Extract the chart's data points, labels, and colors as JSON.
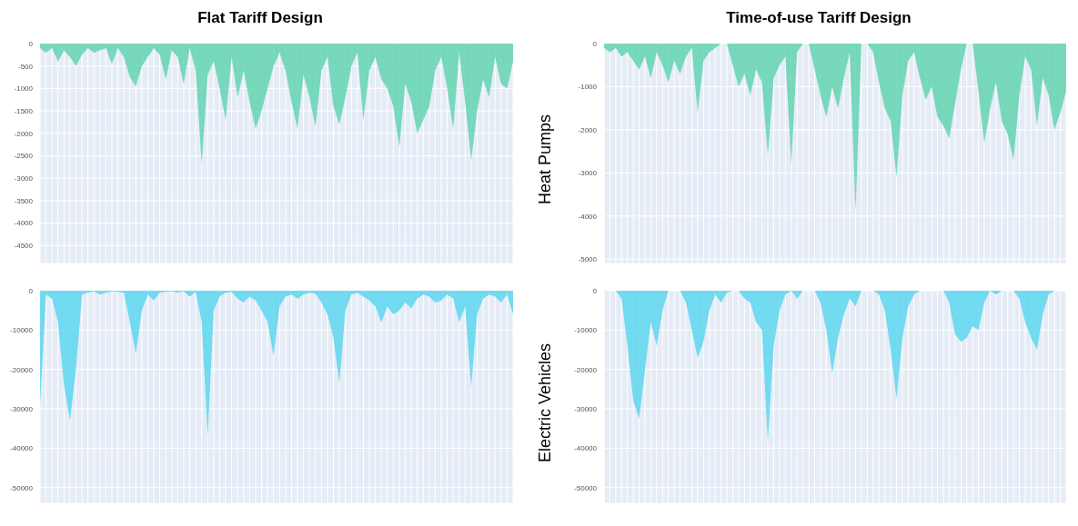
{
  "chart_data": [
    {
      "type": "area",
      "title": "Flat Tariff Design",
      "categories": [
        null,
        null,
        null,
        null,
        null,
        null,
        null,
        null,
        null,
        null,
        null,
        null,
        null,
        null,
        null,
        null,
        null,
        null,
        null,
        null,
        null,
        null,
        null,
        null,
        null,
        null,
        null,
        null,
        null,
        null,
        null,
        null,
        null,
        null,
        null,
        null,
        null,
        null,
        null,
        null,
        null,
        null,
        null,
        null,
        null,
        null,
        null,
        null,
        null,
        null,
        null,
        null,
        null,
        null,
        null,
        null,
        null,
        null,
        null,
        null,
        null,
        null,
        null,
        null,
        null,
        null,
        null,
        null,
        null,
        null,
        null,
        null,
        null,
        null,
        null,
        null,
        null,
        null,
        null,
        null
      ],
      "series": [
        {
          "color": "#63d3b0",
          "values": [
            -100,
            -200,
            -100,
            -400,
            -150,
            -300,
            -500,
            -250,
            -100,
            -200,
            -150,
            -100,
            -450,
            -100,
            -300,
            -750,
            -950,
            -500,
            -300,
            -100,
            -250,
            -800,
            -150,
            -300,
            -900,
            -100,
            -600,
            -2700,
            -700,
            -400,
            -1000,
            -1700,
            -300,
            -1200,
            -600,
            -1300,
            -1900,
            -1500,
            -1000,
            -500,
            -200,
            -600,
            -1300,
            -1900,
            -700,
            -1200,
            -1850,
            -600,
            -300,
            -1400,
            -1800,
            -1200,
            -500,
            -200,
            -1700,
            -600,
            -300,
            -800,
            -1000,
            -1400,
            -2300,
            -900,
            -1300,
            -2000,
            -1700,
            -1400,
            -600,
            -300,
            -1000,
            -1900,
            -200,
            -1300,
            -2600,
            -1500,
            -800,
            -1200,
            -300,
            -900,
            -1000,
            -400
          ]
        }
      ],
      "ylim": [
        -4900,
        0
      ],
      "yticks": [
        0,
        -500,
        -1000,
        -1500,
        -2000,
        -2500,
        -3000,
        -3500,
        -4000,
        -4500
      ],
      "grid": true
    },
    {
      "type": "area",
      "title": "Time-of-use Tariff Design",
      "ylabel": "Heat Pumps",
      "categories": [
        null,
        null,
        null,
        null,
        null,
        null,
        null,
        null,
        null,
        null,
        null,
        null,
        null,
        null,
        null,
        null,
        null,
        null,
        null,
        null,
        null,
        null,
        null,
        null,
        null,
        null,
        null,
        null,
        null,
        null,
        null,
        null,
        null,
        null,
        null,
        null,
        null,
        null,
        null,
        null,
        null,
        null,
        null,
        null,
        null,
        null,
        null,
        null,
        null,
        null,
        null,
        null,
        null,
        null,
        null,
        null,
        null,
        null,
        null,
        null,
        null,
        null,
        null,
        null,
        null,
        null,
        null,
        null,
        null,
        null,
        null,
        null,
        null,
        null,
        null,
        null,
        null,
        null,
        null,
        null
      ],
      "series": [
        {
          "color": "#63d3b0",
          "values": [
            -100,
            -200,
            -100,
            -300,
            -200,
            -400,
            -600,
            -300,
            -800,
            -200,
            -500,
            -900,
            -400,
            -700,
            -300,
            -100,
            -1600,
            -400,
            -200,
            -100,
            0,
            0,
            -500,
            -1000,
            -700,
            -1200,
            -600,
            -900,
            -2600,
            -800,
            -500,
            -300,
            -2800,
            -200,
            0,
            0,
            -600,
            -1200,
            -1700,
            -1000,
            -1500,
            -800,
            -200,
            -3900,
            0,
            0,
            -200,
            -900,
            -1500,
            -1800,
            -3100,
            -1200,
            -400,
            -200,
            -800,
            -1300,
            -1000,
            -1700,
            -1900,
            -2200,
            -1400,
            -600,
            0,
            0,
            -1100,
            -2300,
            -1500,
            -900,
            -1800,
            -2100,
            -2700,
            -1200,
            -300,
            -600,
            -1900,
            -800,
            -1200,
            -2000,
            -1600,
            -1100
          ]
        }
      ],
      "ylim": [
        -5100,
        0
      ],
      "yticks": [
        0,
        -1000,
        -2000,
        -3000,
        -4000,
        -5000
      ],
      "grid": true
    },
    {
      "type": "area",
      "categories": [
        null,
        null,
        null,
        null,
        null,
        null,
        null,
        null,
        null,
        null,
        null,
        null,
        null,
        null,
        null,
        null,
        null,
        null,
        null,
        null,
        null,
        null,
        null,
        null,
        null,
        null,
        null,
        null,
        null,
        null,
        null,
        null,
        null,
        null,
        null,
        null,
        null,
        null,
        null,
        null,
        null,
        null,
        null,
        null,
        null,
        null,
        null,
        null,
        null,
        null,
        null,
        null,
        null,
        null,
        null,
        null,
        null,
        null,
        null,
        null,
        null,
        null,
        null,
        null,
        null,
        null,
        null,
        null,
        null,
        null,
        null,
        null,
        null,
        null,
        null,
        null,
        null,
        null,
        null,
        null
      ],
      "series": [
        {
          "color": "#5dd6ee",
          "values": [
            -29000,
            -1000,
            -2000,
            -8000,
            -24000,
            -33000,
            -20000,
            -1000,
            -500,
            -200,
            -1000,
            -500,
            -200,
            -300,
            -500,
            -8000,
            -16000,
            -5000,
            -1000,
            -2500,
            -500,
            -300,
            -200,
            -500,
            -200,
            -1500,
            -300,
            -8000,
            -37000,
            -5000,
            -1500,
            -500,
            -300,
            -2000,
            -3000,
            -1500,
            -2500,
            -5000,
            -8000,
            -16500,
            -4000,
            -1500,
            -1000,
            -2000,
            -1000,
            -500,
            -800,
            -3000,
            -6000,
            -12000,
            -23500,
            -5000,
            -1000,
            -500,
            -1500,
            -2500,
            -4000,
            -8000,
            -4000,
            -6000,
            -5000,
            -3000,
            -4500,
            -2000,
            -1000,
            -1500,
            -3000,
            -2500,
            -1000,
            -2000,
            -8000,
            -4000,
            -24500,
            -6000,
            -2000,
            -1000,
            -1500,
            -3000,
            -1000,
            -6000
          ]
        }
      ],
      "ylim": [
        -54000,
        0
      ],
      "yticks": [
        0,
        -10000,
        -20000,
        -30000,
        -40000,
        -50000
      ],
      "grid": true
    },
    {
      "type": "area",
      "ylabel": "Electric Vehicles",
      "categories": [
        null,
        null,
        null,
        null,
        null,
        null,
        null,
        null,
        null,
        null,
        null,
        null,
        null,
        null,
        null,
        null,
        null,
        null,
        null,
        null,
        null,
        null,
        null,
        null,
        null,
        null,
        null,
        null,
        null,
        null,
        null,
        null,
        null,
        null,
        null,
        null,
        null,
        null,
        null,
        null,
        null,
        null,
        null,
        null,
        null,
        null,
        null,
        null,
        null,
        null,
        null,
        null,
        null,
        null,
        null,
        null,
        null,
        null,
        null,
        null,
        null,
        null,
        null,
        null,
        null,
        null,
        null,
        null,
        null,
        null,
        null,
        null,
        null,
        null,
        null,
        null,
        null,
        null,
        null,
        null
      ],
      "series": [
        {
          "color": "#5dd6ee",
          "values": [
            0,
            0,
            0,
            -2000,
            -14000,
            -28000,
            -32500,
            -20000,
            -8000,
            -14000,
            -5000,
            0,
            0,
            0,
            -3000,
            -10000,
            -17000,
            -13000,
            -5000,
            -1000,
            -3000,
            -500,
            0,
            0,
            -2000,
            -3000,
            -8000,
            -10000,
            -38500,
            -14000,
            -5000,
            -1000,
            0,
            -2000,
            0,
            0,
            0,
            -3000,
            -10000,
            -21000,
            -12000,
            -6000,
            -2000,
            -4000,
            0,
            0,
            0,
            -1000,
            -5000,
            -15000,
            -27500,
            -12000,
            -4000,
            -1000,
            0,
            0,
            0,
            0,
            0,
            -3000,
            -11000,
            -13000,
            -12000,
            -9000,
            -10000,
            -3000,
            0,
            -1000,
            0,
            0,
            0,
            -2000,
            -8000,
            -12000,
            -15000,
            -6000,
            -1000,
            0,
            0,
            0
          ]
        }
      ],
      "ylim": [
        -54000,
        0
      ],
      "yticks": [
        0,
        -10000,
        -20000,
        -30000,
        -40000,
        -50000
      ],
      "grid": true
    }
  ]
}
